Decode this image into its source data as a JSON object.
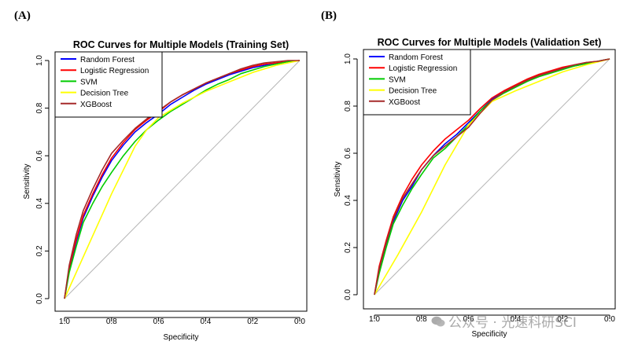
{
  "panels": [
    {
      "label": "(A)"
    },
    {
      "label": "(B)"
    }
  ],
  "watermark": {
    "text": "公众号 · 光速科研SCI"
  },
  "chart_data": [
    {
      "type": "line",
      "title": "ROC Curves for Multiple Models (Training Set)",
      "xlabel": "Specificity",
      "ylabel": "Sensitivity",
      "xlim": [
        1.0,
        0.0
      ],
      "ylim": [
        0.0,
        1.0
      ],
      "xticks": [
        "1.0",
        "0.8",
        "0.6",
        "0.4",
        "0.2",
        "0.0"
      ],
      "yticks": [
        "0.0",
        "0.2",
        "0.4",
        "0.6",
        "0.8",
        "1.0"
      ],
      "legend_position": "top-left",
      "diagonal": true,
      "series": [
        {
          "name": "Random Forest",
          "color": "#0000ff",
          "specificity": [
            1.0,
            0.98,
            0.95,
            0.92,
            0.88,
            0.84,
            0.8,
            0.75,
            0.7,
            0.65,
            0.6,
            0.55,
            0.5,
            0.45,
            0.4,
            0.35,
            0.3,
            0.25,
            0.2,
            0.15,
            0.1,
            0.05,
            0.0
          ],
          "sensitivity": [
            0.0,
            0.12,
            0.24,
            0.34,
            0.43,
            0.51,
            0.58,
            0.645,
            0.7,
            0.74,
            0.775,
            0.815,
            0.845,
            0.875,
            0.9,
            0.92,
            0.94,
            0.955,
            0.97,
            0.98,
            0.99,
            0.995,
            1.0
          ]
        },
        {
          "name": "Logistic Regression",
          "color": "#ff0000",
          "specificity": [
            1.0,
            0.98,
            0.95,
            0.92,
            0.88,
            0.84,
            0.8,
            0.75,
            0.7,
            0.65,
            0.6,
            0.55,
            0.5,
            0.45,
            0.4,
            0.35,
            0.3,
            0.25,
            0.2,
            0.15,
            0.1,
            0.05,
            0.0
          ],
          "sensitivity": [
            0.0,
            0.13,
            0.25,
            0.35,
            0.44,
            0.52,
            0.59,
            0.655,
            0.71,
            0.75,
            0.785,
            0.825,
            0.855,
            0.88,
            0.905,
            0.925,
            0.945,
            0.96,
            0.975,
            0.985,
            0.99,
            0.995,
            1.0
          ]
        },
        {
          "name": "SVM",
          "color": "#00cc00",
          "specificity": [
            1.0,
            0.98,
            0.95,
            0.92,
            0.88,
            0.84,
            0.8,
            0.75,
            0.7,
            0.65,
            0.6,
            0.55,
            0.5,
            0.45,
            0.4,
            0.35,
            0.3,
            0.25,
            0.2,
            0.15,
            0.1,
            0.05,
            0.0
          ],
          "sensitivity": [
            0.0,
            0.11,
            0.22,
            0.32,
            0.4,
            0.47,
            0.53,
            0.6,
            0.66,
            0.71,
            0.75,
            0.785,
            0.815,
            0.845,
            0.875,
            0.9,
            0.92,
            0.945,
            0.96,
            0.975,
            0.985,
            0.995,
            1.0
          ]
        },
        {
          "name": "Decision Tree",
          "color": "#ffff00",
          "specificity": [
            1.0,
            0.9,
            0.8,
            0.7,
            0.65,
            0.6,
            0.5,
            0.4,
            0.3,
            0.2,
            0.1,
            0.0
          ],
          "sensitivity": [
            0.0,
            0.22,
            0.44,
            0.64,
            0.71,
            0.76,
            0.82,
            0.87,
            0.91,
            0.95,
            0.98,
            1.0
          ]
        },
        {
          "name": "XGBoost",
          "color": "#a52a2a",
          "specificity": [
            1.0,
            0.98,
            0.95,
            0.92,
            0.88,
            0.84,
            0.8,
            0.75,
            0.7,
            0.65,
            0.6,
            0.55,
            0.5,
            0.45,
            0.4,
            0.35,
            0.3,
            0.25,
            0.2,
            0.15,
            0.1,
            0.05,
            0.0
          ],
          "sensitivity": [
            0.0,
            0.14,
            0.27,
            0.37,
            0.46,
            0.54,
            0.61,
            0.665,
            0.715,
            0.755,
            0.79,
            0.825,
            0.855,
            0.88,
            0.905,
            0.925,
            0.945,
            0.965,
            0.98,
            0.99,
            0.995,
            1.0,
            1.0
          ]
        }
      ]
    },
    {
      "type": "line",
      "title": "ROC Curves for Multiple Models (Validation Set)",
      "xlabel": "Specificity",
      "ylabel": "Sensitivity",
      "xlim": [
        1.0,
        0.0
      ],
      "ylim": [
        0.0,
        1.0
      ],
      "xticks": [
        "1.0",
        "0.8",
        "0.6",
        "0.4",
        "0.2",
        "0.0"
      ],
      "yticks": [
        "0.0",
        "0.2",
        "0.4",
        "0.6",
        "0.8",
        "1.0"
      ],
      "legend_position": "top-left",
      "diagonal": true,
      "series": [
        {
          "name": "Random Forest",
          "color": "#0000ff",
          "specificity": [
            1.0,
            0.98,
            0.95,
            0.92,
            0.88,
            0.84,
            0.8,
            0.75,
            0.7,
            0.65,
            0.6,
            0.55,
            0.5,
            0.45,
            0.4,
            0.35,
            0.3,
            0.25,
            0.2,
            0.15,
            0.1,
            0.05,
            0.0
          ],
          "sensitivity": [
            0.0,
            0.1,
            0.21,
            0.31,
            0.4,
            0.46,
            0.53,
            0.59,
            0.64,
            0.68,
            0.73,
            0.78,
            0.83,
            0.86,
            0.885,
            0.91,
            0.93,
            0.945,
            0.96,
            0.97,
            0.98,
            0.99,
            1.0
          ]
        },
        {
          "name": "Logistic Regression",
          "color": "#ff0000",
          "specificity": [
            1.0,
            0.98,
            0.95,
            0.92,
            0.88,
            0.84,
            0.8,
            0.75,
            0.7,
            0.65,
            0.6,
            0.55,
            0.5,
            0.45,
            0.4,
            0.35,
            0.3,
            0.25,
            0.2,
            0.15,
            0.1,
            0.05,
            0.0
          ],
          "sensitivity": [
            0.0,
            0.12,
            0.23,
            0.33,
            0.42,
            0.49,
            0.55,
            0.61,
            0.66,
            0.7,
            0.74,
            0.79,
            0.835,
            0.865,
            0.89,
            0.915,
            0.935,
            0.95,
            0.965,
            0.975,
            0.985,
            0.99,
            1.0
          ]
        },
        {
          "name": "SVM",
          "color": "#00cc00",
          "specificity": [
            1.0,
            0.98,
            0.95,
            0.92,
            0.88,
            0.84,
            0.8,
            0.75,
            0.7,
            0.65,
            0.6,
            0.55,
            0.5,
            0.45,
            0.4,
            0.35,
            0.3,
            0.25,
            0.2,
            0.15,
            0.1,
            0.05,
            0.0
          ],
          "sensitivity": [
            0.0,
            0.09,
            0.2,
            0.3,
            0.38,
            0.45,
            0.51,
            0.58,
            0.62,
            0.67,
            0.72,
            0.78,
            0.825,
            0.855,
            0.88,
            0.905,
            0.925,
            0.94,
            0.955,
            0.97,
            0.98,
            0.99,
            1.0
          ]
        },
        {
          "name": "Decision Tree",
          "color": "#ffff00",
          "specificity": [
            1.0,
            0.9,
            0.8,
            0.7,
            0.6,
            0.5,
            0.4,
            0.3,
            0.2,
            0.1,
            0.0
          ],
          "sensitivity": [
            0.0,
            0.17,
            0.35,
            0.55,
            0.72,
            0.82,
            0.865,
            0.905,
            0.945,
            0.975,
            1.0
          ]
        },
        {
          "name": "XGBoost",
          "color": "#a52a2a",
          "specificity": [
            1.0,
            0.98,
            0.95,
            0.92,
            0.88,
            0.84,
            0.8,
            0.75,
            0.7,
            0.65,
            0.6,
            0.55,
            0.5,
            0.45,
            0.4,
            0.35,
            0.3,
            0.25,
            0.2,
            0.15,
            0.1,
            0.05,
            0.0
          ],
          "sensitivity": [
            0.0,
            0.11,
            0.22,
            0.32,
            0.41,
            0.47,
            0.53,
            0.59,
            0.63,
            0.67,
            0.71,
            0.77,
            0.825,
            0.86,
            0.885,
            0.91,
            0.93,
            0.945,
            0.96,
            0.975,
            0.985,
            0.99,
            1.0
          ]
        }
      ]
    }
  ]
}
